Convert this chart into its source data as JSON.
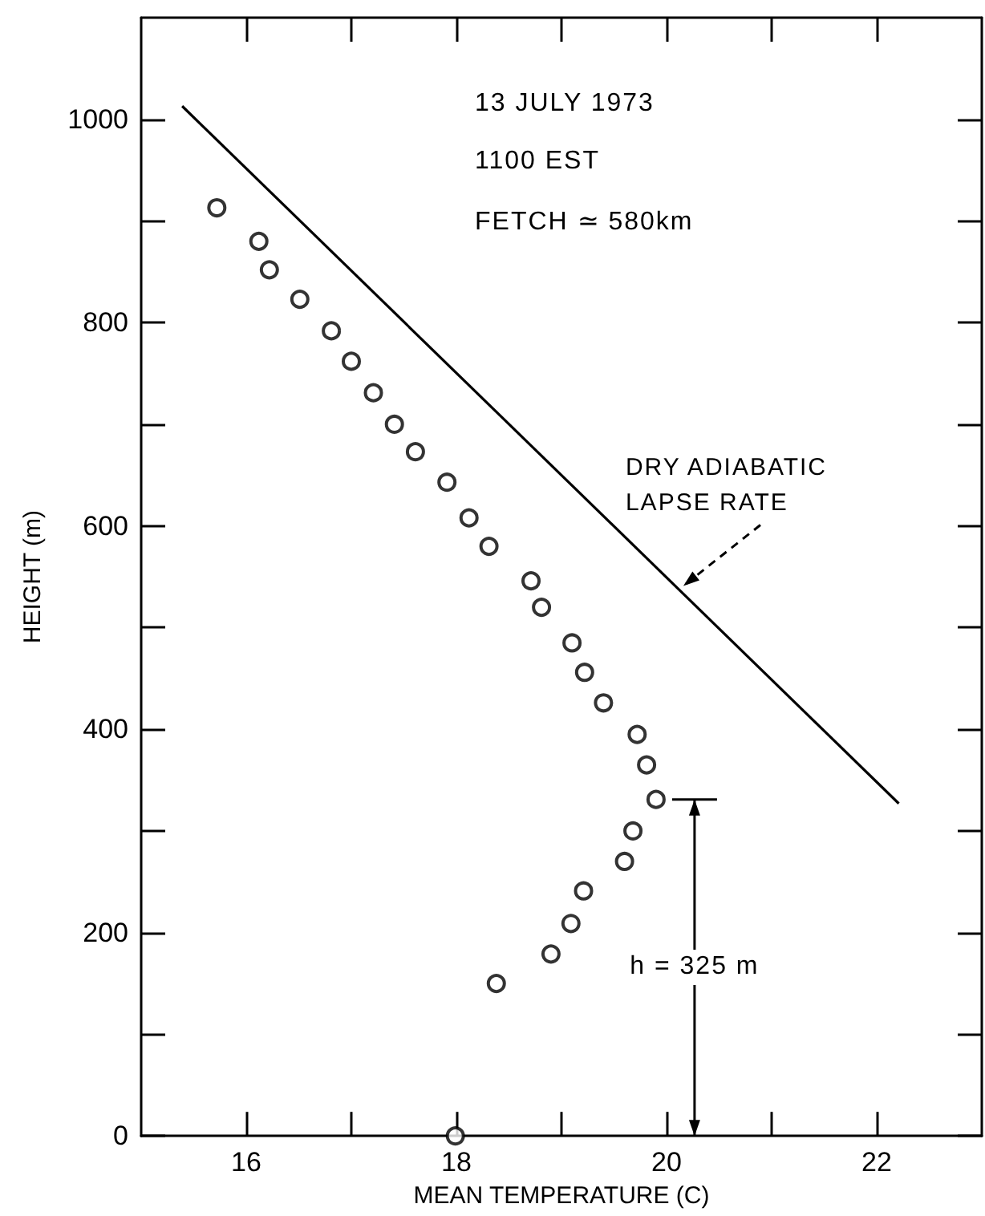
{
  "chart_data": {
    "type": "scatter",
    "xlabel": "MEAN TEMPERATURE (C)",
    "ylabel": "HEIGHT (m)",
    "annotations": [
      "13 JULY 1973",
      "1100 EST",
      "FETCH ≃ 580km",
      {
        "text": "DRY ADIABATIC LAPSE RATE",
        "x": 20.16,
        "y": 541
      },
      "h = 325 m"
    ],
    "xlim": [
      15,
      23
    ],
    "xticks": [
      16,
      {
        "value": 17,
        "label": null
      },
      18,
      {
        "value": 19,
        "label": null
      },
      20,
      {
        "value": 21,
        "label": null
      },
      22
    ],
    "ylim": [
      0,
      1100
    ],
    "yticks": [
      0,
      {
        "value": 100,
        "label": null
      },
      200,
      {
        "value": 300,
        "label": null
      },
      400,
      {
        "value": 500,
        "label": null
      },
      600,
      {
        "value": 700,
        "label": null
      },
      800,
      {
        "value": 900,
        "label": null
      },
      1000
    ],
    "marker": "circle",
    "grid": false,
    "series": [
      {
        "color": "#000000",
        "x": [
          15.72,
          16.12,
          16.22,
          16.51,
          16.81,
          17.0,
          17.21,
          17.41,
          17.61,
          17.91,
          18.12,
          18.31,
          18.71,
          18.81,
          19.1,
          19.22,
          19.4,
          19.72,
          19.81,
          19.9,
          19.68,
          19.6,
          19.21,
          19.09,
          18.9,
          18.38,
          17.99
        ],
        "values": [
          913,
          880,
          852,
          823,
          792,
          762,
          731,
          700,
          673,
          643,
          608,
          580,
          546,
          520,
          485,
          456,
          426,
          395,
          365,
          331,
          300,
          270,
          241,
          209,
          179,
          150,
          0
        ]
      },
      {
        "type": "line",
        "color": "#000000",
        "marker": "none",
        "line_style": "solid",
        "x": [
          15.39,
          22.21
        ],
        "values": [
          1013,
          327
        ]
      }
    ]
  }
}
